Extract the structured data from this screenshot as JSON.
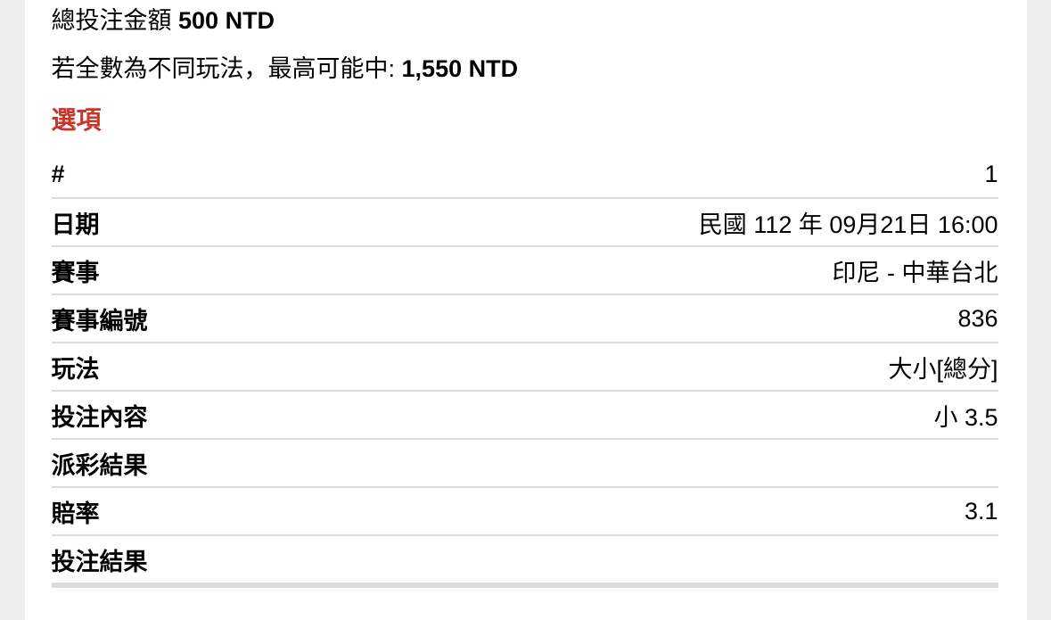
{
  "summary": {
    "total_label": "總投注金額",
    "total_amount": "500 NTD",
    "max_win_label": "若全數為不同玩法，最高可能中:",
    "max_win_amount": "1,550 NTD"
  },
  "section": {
    "title": "選項"
  },
  "bet_table": {
    "rows": [
      {
        "label": "#",
        "value": "1"
      },
      {
        "label": "日期",
        "value": "民國 112 年 09月21日 16:00"
      },
      {
        "label": "賽事",
        "value": "印尼 - 中華台北"
      },
      {
        "label": "賽事編號",
        "value": "836"
      },
      {
        "label": "玩法",
        "value": "大小[總分]"
      },
      {
        "label": "投注內容",
        "value": "小 3.5"
      },
      {
        "label": "派彩結果",
        "value": ""
      },
      {
        "label": "賠率",
        "value": "3.1"
      },
      {
        "label": "投注結果",
        "value": ""
      }
    ]
  },
  "colors": {
    "accent_red": "#c9342b",
    "divider": "#dcdcdc",
    "page_background": "#ededed",
    "card_background": "#ffffff"
  }
}
